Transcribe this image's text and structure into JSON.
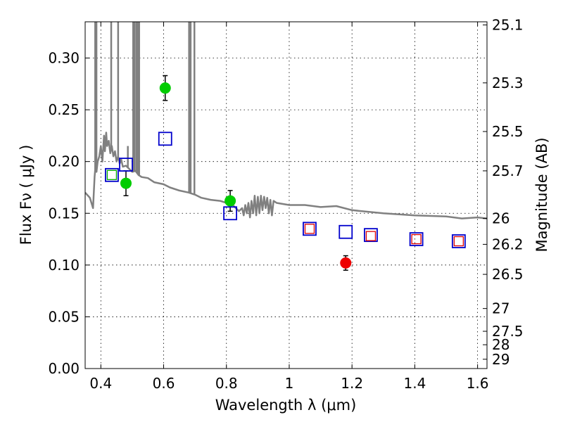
{
  "chart_data": {
    "type": "scatter",
    "title": "",
    "xlabel": "Wavelength  λ (μm)",
    "ylabel": "Flux  Fν  ( μJy )",
    "y2label": "Magnitude (AB)",
    "xlim": [
      0.35,
      1.63
    ],
    "ylim": [
      0.0,
      0.335
    ],
    "x_ticks": [
      0.4,
      0.6,
      0.8,
      1.0,
      1.2,
      1.4,
      1.6
    ],
    "x_tick_labels": [
      "0.4",
      "0.6",
      "0.8",
      "1",
      "1.2",
      "1.4",
      "1.6"
    ],
    "y_ticks": [
      0.0,
      0.05,
      0.1,
      0.15,
      0.2,
      0.25,
      0.3
    ],
    "y_tick_labels": [
      "0.00",
      "0.05",
      "0.10",
      "0.15",
      "0.20",
      "0.25",
      "0.30"
    ],
    "y2_ticks": [
      {
        "label": "25.1",
        "flux": 0.332
      },
      {
        "label": "25.3",
        "flux": 0.276
      },
      {
        "label": "25.5",
        "flux": 0.229
      },
      {
        "label": "25.7",
        "flux": 0.191
      },
      {
        "label": "26",
        "flux": 0.145
      },
      {
        "label": "26.2",
        "flux": 0.12
      },
      {
        "label": "26.5",
        "flux": 0.091
      },
      {
        "label": "27",
        "flux": 0.058
      },
      {
        "label": "27.5",
        "flux": 0.036
      },
      {
        "label": "28",
        "flux": 0.023
      },
      {
        "label": "29",
        "flux": 0.009
      }
    ],
    "grid": true,
    "series": [
      {
        "name": "observed-detections",
        "marker": "circle",
        "color": "#00cc00",
        "points": [
          {
            "x": 0.48,
            "y": 0.179,
            "err": 0.012
          },
          {
            "x": 0.605,
            "y": 0.271,
            "err": 0.012
          },
          {
            "x": 0.812,
            "y": 0.162,
            "err": 0.01
          }
        ]
      },
      {
        "name": "observed-red",
        "marker": "circle",
        "color": "#ee0000",
        "points": [
          {
            "x": 1.18,
            "y": 0.102,
            "err": 0.007
          }
        ]
      },
      {
        "name": "model-photometry",
        "marker": "square-open",
        "color": "#0000cc",
        "points": [
          {
            "x": 0.435,
            "y": 0.187
          },
          {
            "x": 0.48,
            "y": 0.197
          },
          {
            "x": 0.605,
            "y": 0.222
          },
          {
            "x": 0.812,
            "y": 0.15
          },
          {
            "x": 1.065,
            "y": 0.135
          },
          {
            "x": 1.18,
            "y": 0.132
          },
          {
            "x": 1.26,
            "y": 0.129
          },
          {
            "x": 1.405,
            "y": 0.125
          },
          {
            "x": 1.54,
            "y": 0.123
          }
        ]
      },
      {
        "name": "small-open-green",
        "marker": "square-open-small",
        "color": "#00aa00",
        "points": [
          {
            "x": 0.435,
            "y": 0.187
          }
        ]
      },
      {
        "name": "small-open-red",
        "marker": "square-open-small",
        "color": "#dd0000",
        "points": [
          {
            "x": 1.065,
            "y": 0.135
          },
          {
            "x": 1.26,
            "y": 0.128
          },
          {
            "x": 1.405,
            "y": 0.125
          },
          {
            "x": 1.54,
            "y": 0.123
          }
        ]
      }
    ],
    "spectrum": {
      "name": "model-sed",
      "color": "#808080",
      "x": [
        0.35,
        0.365,
        0.375,
        0.38,
        0.384,
        0.386,
        0.39,
        0.395,
        0.4,
        0.405,
        0.41,
        0.413,
        0.417,
        0.42,
        0.425,
        0.43,
        0.435,
        0.44,
        0.445,
        0.45,
        0.455,
        0.46,
        0.465,
        0.47,
        0.48,
        0.49,
        0.5,
        0.51,
        0.52,
        0.53,
        0.55,
        0.57,
        0.6,
        0.62,
        0.65,
        0.68,
        0.7,
        0.72,
        0.75,
        0.78,
        0.8,
        0.82,
        0.84,
        0.85,
        0.855,
        0.86,
        0.865,
        0.87,
        0.875,
        0.88,
        0.885,
        0.89,
        0.895,
        0.9,
        0.905,
        0.91,
        0.915,
        0.92,
        0.925,
        0.93,
        0.935,
        0.94,
        0.945,
        0.95,
        0.96,
        0.98,
        1.0,
        1.05,
        1.1,
        1.15,
        1.2,
        1.3,
        1.4,
        1.5,
        1.55,
        1.6,
        1.63
      ],
      "y": [
        0.17,
        0.165,
        0.155,
        0.185,
        0.2,
        0.19,
        0.2,
        0.205,
        0.215,
        0.2,
        0.225,
        0.21,
        0.228,
        0.215,
        0.22,
        0.208,
        0.215,
        0.205,
        0.21,
        0.2,
        0.205,
        0.198,
        0.202,
        0.195,
        0.196,
        0.193,
        0.19,
        0.191,
        0.187,
        0.185,
        0.184,
        0.18,
        0.178,
        0.175,
        0.172,
        0.17,
        0.168,
        0.165,
        0.163,
        0.162,
        0.16,
        0.158,
        0.152,
        0.155,
        0.148,
        0.158,
        0.15,
        0.16,
        0.146,
        0.162,
        0.15,
        0.167,
        0.148,
        0.166,
        0.15,
        0.167,
        0.153,
        0.166,
        0.155,
        0.165,
        0.15,
        0.163,
        0.148,
        0.162,
        0.16,
        0.159,
        0.158,
        0.158,
        0.156,
        0.157,
        0.153,
        0.15,
        0.148,
        0.147,
        0.145,
        0.146,
        0.145
      ],
      "emission_lines": [
        {
          "x": 0.382,
          "top": 0.335
        },
        {
          "x": 0.386,
          "top": 0.335
        },
        {
          "x": 0.433,
          "top": 0.335
        },
        {
          "x": 0.455,
          "top": 0.335
        },
        {
          "x": 0.486,
          "top": 0.215
        },
        {
          "x": 0.503,
          "top": 0.335
        },
        {
          "x": 0.507,
          "top": 0.335
        },
        {
          "x": 0.513,
          "top": 0.335
        },
        {
          "x": 0.515,
          "top": 0.335
        },
        {
          "x": 0.519,
          "top": 0.335
        },
        {
          "x": 0.522,
          "top": 0.335
        },
        {
          "x": 0.681,
          "top": 0.335
        },
        {
          "x": 0.686,
          "top": 0.335
        },
        {
          "x": 0.698,
          "top": 0.335
        }
      ]
    }
  }
}
